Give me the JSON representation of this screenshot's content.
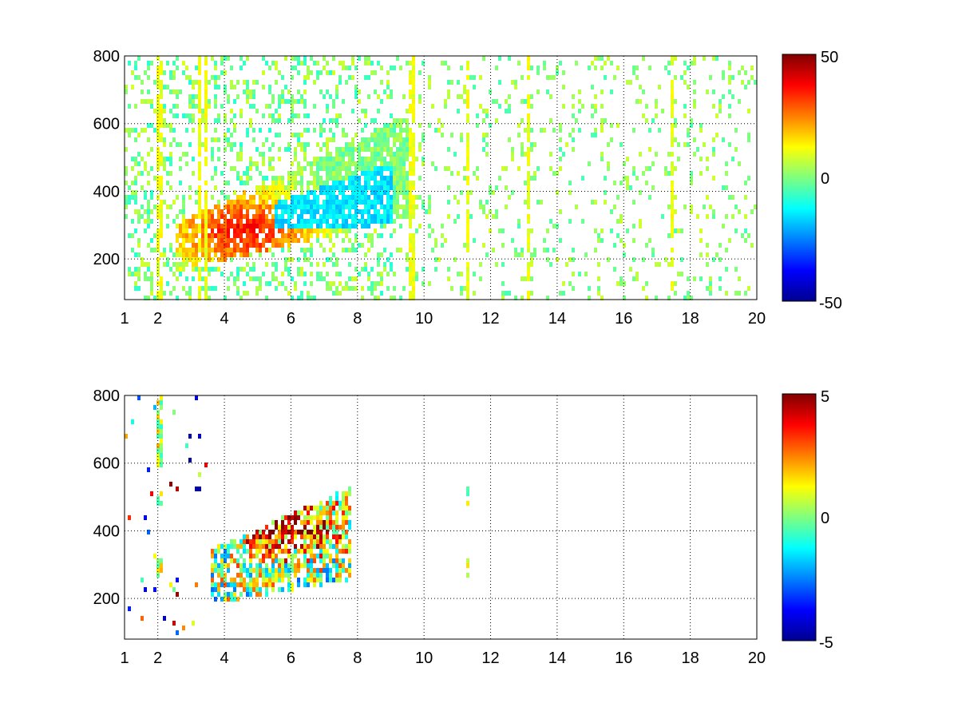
{
  "chart_data": [
    {
      "type": "heatmap",
      "title": "",
      "xlabel": "",
      "ylabel": "",
      "xlim": [
        1,
        20
      ],
      "ylim": [
        80,
        800
      ],
      "xticks": [
        "1",
        "2",
        "4",
        "6",
        "8",
        "10",
        "12",
        "14",
        "16",
        "18",
        "20"
      ],
      "yticks": [
        "200",
        "400",
        "600",
        "800"
      ],
      "grid": true,
      "colorbar": {
        "colormap": "jet",
        "range": [
          -50,
          50
        ],
        "ticks": [
          "50",
          "0",
          "-50"
        ]
      },
      "pattern": {
        "band": {
          "x_start": 2.5,
          "x_end": 9.5,
          "y_at_x_start": 240,
          "y_at_x_end": 480,
          "half_width_y": 70
        },
        "peak": {
          "x": 4.5,
          "y": 290,
          "value": 35
        },
        "negative_region": {
          "x_range": [
            5.5,
            9
          ],
          "y_range": [
            300,
            480
          ],
          "value": -15
        },
        "vertical_streaks_x": [
          2.0,
          3.2,
          3.4,
          9.6,
          11.3,
          13.1,
          17.4
        ]
      }
    },
    {
      "type": "heatmap",
      "title": "",
      "xlabel": "",
      "ylabel": "",
      "xlim": [
        1,
        20
      ],
      "ylim": [
        80,
        800
      ],
      "xticks": [
        "1",
        "2",
        "4",
        "6",
        "8",
        "10",
        "12",
        "14",
        "16",
        "18",
        "20"
      ],
      "yticks": [
        "200",
        "400",
        "600",
        "800"
      ],
      "grid": true,
      "colorbar": {
        "colormap": "jet",
        "range": [
          -5,
          5
        ],
        "ticks": [
          "5",
          "0",
          "-5"
        ]
      },
      "pattern": {
        "band": {
          "x_start": 3.5,
          "x_end": 7.8,
          "y_at_x_start": 270,
          "y_at_x_end": 400,
          "half_width_y": 80
        },
        "peak": {
          "x": 5.8,
          "y": 420,
          "value": 5
        },
        "isolated_streaks_x": [
          2.0,
          11.3
        ]
      }
    }
  ]
}
